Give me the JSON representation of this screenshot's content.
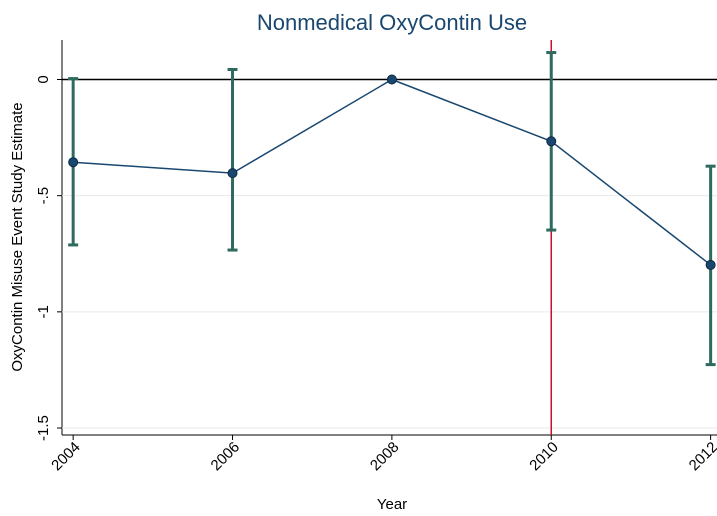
{
  "chart_data": {
    "type": "errorbar",
    "title": "Nonmedical OxyContin Use",
    "x_label": "Year",
    "y_label": "OxyContin Misuse Event Study Estimate",
    "x": [
      2004,
      2006,
      2008,
      2010,
      2012
    ],
    "series": [
      {
        "color": "#1a476f",
        "bar_color": "#2e6b5e",
        "values": [
          -0.356,
          -0.403,
          0,
          -0.266,
          -0.798
        ],
        "ci_low": [
          -0.712,
          -0.734,
          null,
          -0.648,
          -1.227
        ],
        "ci_high": [
          0.004,
          0.043,
          null,
          0.116,
          -0.373
        ]
      }
    ],
    "xlim": [
      2003.86,
      2012.08
    ],
    "xticks": [
      2004,
      2006,
      2008,
      2010,
      2012
    ],
    "ylim": [
      -1.53,
      0.17
    ],
    "yticks": [
      {
        "value": -1.5,
        "label": "-1.5"
      },
      {
        "value": -1,
        "label": "-1"
      },
      {
        "value": -0.5,
        "label": "-.5"
      },
      0
    ],
    "grid": true,
    "hline": 0,
    "hline_color": "#000000",
    "vline": 2010,
    "vline_color": "#c8102e"
  }
}
